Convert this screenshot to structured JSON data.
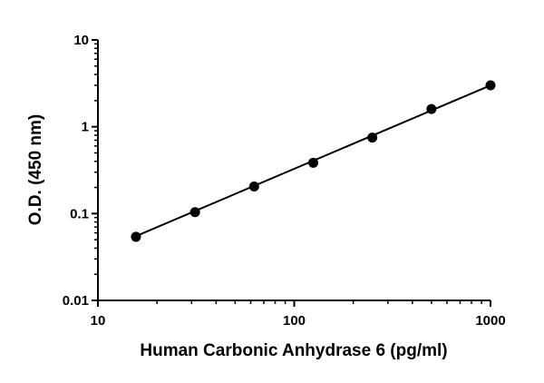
{
  "chart_data": {
    "type": "scatter",
    "title": "",
    "xlabel": "Human Carbonic Anhydrase 6 (pg/ml)",
    "ylabel": "O.D. (450 nm)",
    "x_scale": "log",
    "y_scale": "log",
    "xlim": [
      10,
      1000
    ],
    "ylim": [
      0.01,
      10
    ],
    "x_ticks": [
      10,
      100,
      1000
    ],
    "x_tick_labels": [
      "10",
      "100",
      "1000"
    ],
    "y_ticks": [
      0.01,
      0.1,
      1,
      10
    ],
    "y_tick_labels": [
      "0.01",
      "0.1",
      "1",
      "10"
    ],
    "grid": false,
    "legend": "none",
    "series": [
      {
        "x": [
          15.625,
          31.25,
          62.5,
          125,
          250,
          500,
          1000
        ],
        "y": [
          0.054,
          0.104,
          0.205,
          0.385,
          0.75,
          1.6,
          3.0
        ]
      }
    ],
    "fit_line": {
      "x": [
        15.625,
        1000
      ],
      "y": [
        0.055,
        3.0
      ]
    },
    "colors": {
      "marker": "#000000",
      "line": "#000000",
      "axis": "#000000"
    }
  }
}
